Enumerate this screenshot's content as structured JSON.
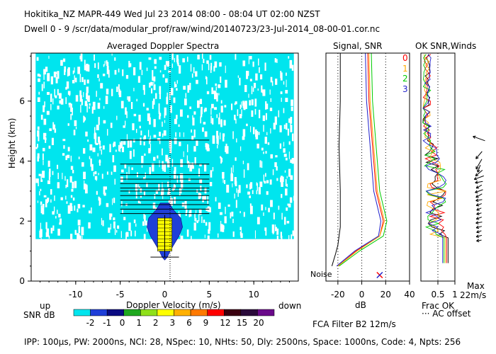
{
  "header": {
    "line1": "Hokitika_NZ   MAPR-449   Wed Jul 23 2014 08:00 - 08:04 UT 02:00 NZST",
    "line2": "Dwell   0  -   9    /scr/data/modular_prof/raw/wind/20140723/23-Jul-2014_08-00-01.cor.nc"
  },
  "footer": "IPP: 100µs,  PW: 2000ns,  NCI:  28,  NSpec: 10,  NHts: 50,  Dly: 2500ns,  Space: 1000ns,  Code: 4,  Npts: 256",
  "colors": {
    "snr_scale": [
      "#00e5ee",
      "#1f3fd8",
      "#0a0a82",
      "#1fa81f",
      "#8fe01a",
      "#ffff00",
      "#ffb000",
      "#ff7a00",
      "#ff0000",
      "#3a0010",
      "#2a0a3a",
      "#6a0a8a"
    ],
    "spec_bg": "#00e5ee",
    "spec_core": "#1f3fd8",
    "line_set": [
      "#ff0000",
      "#ffaa00",
      "#00cc00",
      "#2020cc"
    ]
  },
  "chart_data": [
    {
      "type": "heatmap",
      "title": "Averaged Doppler Spectra",
      "xlabel": "Doppler Velocity (m/s)",
      "ylabel": "Height (km)",
      "xlim": [
        -15,
        15
      ],
      "ylim": [
        0,
        7.6
      ],
      "xticks": [
        "-10",
        "-5",
        "0",
        "5",
        "10"
      ],
      "yticks": [
        "0",
        "2",
        "4",
        "6"
      ],
      "left_note": "up",
      "right_note": "down",
      "colorbar_label": "SNR dB",
      "colorbar_ticks": [
        "-2",
        "-1",
        "0",
        "1",
        "2",
        "3",
        "6",
        "9",
        "12",
        "15",
        "20"
      ],
      "error_bars": [
        {
          "h": 0.8,
          "half": 1.6
        },
        {
          "h": 2.25,
          "half": 5.0
        },
        {
          "h": 2.4,
          "half": 5.0
        },
        {
          "h": 2.55,
          "half": 5.0
        },
        {
          "h": 2.7,
          "half": 5.0
        },
        {
          "h": 2.85,
          "half": 5.0
        },
        {
          "h": 3.0,
          "half": 5.0
        },
        {
          "h": 3.1,
          "half": 5.0
        },
        {
          "h": 3.25,
          "half": 5.0
        },
        {
          "h": 3.4,
          "half": 5.0
        },
        {
          "h": 3.55,
          "half": 5.0
        },
        {
          "h": 3.9,
          "half": 5.0
        },
        {
          "h": 4.7,
          "half": 5.0
        }
      ]
    },
    {
      "type": "line",
      "title": "Signal, SNR",
      "xlabel": "dB",
      "xlim": [
        -30,
        40
      ],
      "ylim": [
        0,
        7.6
      ],
      "xticks": [
        "-20",
        "0",
        "20",
        "40"
      ],
      "noise_label": "Noise",
      "series": [
        {
          "name": "noise",
          "x": [
            -25,
            -22,
            -20,
            -18,
            -18,
            -19,
            -18,
            -18
          ],
          "y": [
            0.5,
            0.9,
            1.2,
            1.8,
            3.0,
            4.5,
            6.0,
            7.6
          ]
        },
        {
          "name": "snr-0",
          "x": [
            -20,
            -5,
            15,
            18,
            15,
            12,
            10,
            8,
            6,
            5
          ],
          "y": [
            0.5,
            1.0,
            1.5,
            2.0,
            2.5,
            3.0,
            4.0,
            5.0,
            6.0,
            7.6
          ]
        },
        {
          "name": "snr-1",
          "x": [
            -20,
            -4,
            15,
            19,
            16,
            13,
            11,
            9,
            7,
            6
          ],
          "y": [
            0.5,
            1.0,
            1.5,
            2.0,
            2.5,
            3.0,
            4.0,
            5.0,
            6.0,
            7.6
          ]
        },
        {
          "name": "snr-2",
          "x": [
            -19,
            -2,
            18,
            21,
            18,
            15,
            13,
            11,
            9,
            8
          ],
          "y": [
            0.5,
            1.0,
            1.5,
            2.0,
            2.5,
            3.0,
            4.0,
            5.0,
            6.0,
            7.6
          ]
        },
        {
          "name": "snr-3",
          "x": [
            -21,
            -6,
            14,
            16,
            13,
            10,
            8,
            6,
            4,
            3
          ],
          "y": [
            0.5,
            1.0,
            1.5,
            2.0,
            2.5,
            3.0,
            4.0,
            5.0,
            6.0,
            7.6
          ]
        }
      ],
      "marker": {
        "x": 15,
        "y": 0.2
      }
    },
    {
      "type": "line",
      "title": "OK  SNR,Winds",
      "xlim": [
        0,
        1
      ],
      "xticks": [
        "0.5",
        "1"
      ],
      "legend": [
        "0",
        "1",
        "2",
        "3"
      ],
      "frac_label": "Frac OK",
      "ac_label": "AC offset",
      "max_label": "Max",
      "max_value": "22m/s",
      "filter_label": "FCA Filter B2 12m/s",
      "winds": [
        {
          "h": 4.75,
          "speed": 20,
          "dir": 290
        },
        {
          "h": 4.2,
          "speed": 15,
          "dir": 220
        },
        {
          "h": 3.9,
          "speed": 18,
          "dir": 210
        },
        {
          "h": 3.75,
          "speed": 12,
          "dir": 200
        },
        {
          "h": 3.6,
          "speed": 14,
          "dir": 230
        },
        {
          "h": 3.45,
          "speed": 16,
          "dir": 250
        },
        {
          "h": 3.3,
          "speed": 12,
          "dir": 260
        },
        {
          "h": 3.15,
          "speed": 10,
          "dir": 240
        },
        {
          "h": 3.0,
          "speed": 13,
          "dir": 250
        },
        {
          "h": 2.85,
          "speed": 11,
          "dir": 240
        },
        {
          "h": 2.7,
          "speed": 10,
          "dir": 260
        },
        {
          "h": 2.55,
          "speed": 9,
          "dir": 250
        },
        {
          "h": 2.4,
          "speed": 8,
          "dir": 245
        },
        {
          "h": 2.25,
          "speed": 8,
          "dir": 255
        },
        {
          "h": 2.1,
          "speed": 9,
          "dir": 250
        },
        {
          "h": 1.95,
          "speed": 10,
          "dir": 260
        },
        {
          "h": 1.8,
          "speed": 9,
          "dir": 255
        },
        {
          "h": 1.65,
          "speed": 8,
          "dir": 250
        },
        {
          "h": 1.5,
          "speed": 9,
          "dir": 255
        },
        {
          "h": 1.35,
          "speed": 8,
          "dir": 260
        }
      ]
    }
  ]
}
